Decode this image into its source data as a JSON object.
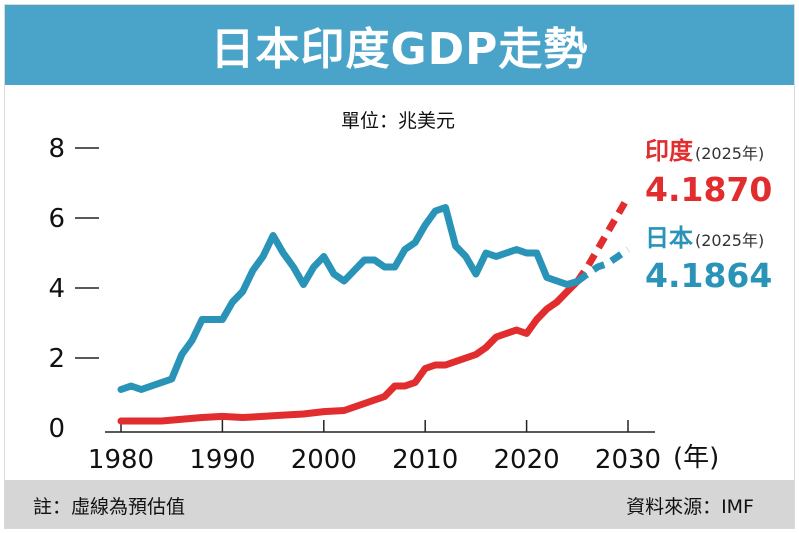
{
  "title": "日本印度GDP走勢",
  "unit": "單位：兆美元",
  "footer": {
    "note": "註：虛線為預估值",
    "source": "資料來源：IMF"
  },
  "annotations": {
    "india": {
      "name": "印度",
      "year": "(2025年)",
      "value": "4.1870"
    },
    "japan": {
      "name": "日本",
      "year": "(2025年)",
      "value": "4.1864"
    }
  },
  "chart_data": {
    "type": "line",
    "x_unit_label": "(年)",
    "xlim": [
      1980,
      2030
    ],
    "ylim": [
      0,
      8
    ],
    "x_ticks": [
      "1980",
      "1990",
      "2000",
      "2010",
      "2020",
      "2030"
    ],
    "y_ticks": [
      "0",
      "2",
      "4",
      "6",
      "8"
    ],
    "series": [
      {
        "name": "日本",
        "color": "#2a93b8",
        "values": [
          [
            1980,
            1.1
          ],
          [
            1981,
            1.2
          ],
          [
            1982,
            1.1
          ],
          [
            1983,
            1.2
          ],
          [
            1984,
            1.3
          ],
          [
            1985,
            1.4
          ],
          [
            1986,
            2.1
          ],
          [
            1987,
            2.5
          ],
          [
            1988,
            3.1
          ],
          [
            1989,
            3.1
          ],
          [
            1990,
            3.1
          ],
          [
            1991,
            3.6
          ],
          [
            1992,
            3.9
          ],
          [
            1993,
            4.5
          ],
          [
            1994,
            4.9
          ],
          [
            1995,
            5.5
          ],
          [
            1996,
            5.0
          ],
          [
            1997,
            4.6
          ],
          [
            1998,
            4.1
          ],
          [
            1999,
            4.6
          ],
          [
            2000,
            4.9
          ],
          [
            2001,
            4.4
          ],
          [
            2002,
            4.2
          ],
          [
            2003,
            4.5
          ],
          [
            2004,
            4.8
          ],
          [
            2005,
            4.8
          ],
          [
            2006,
            4.6
          ],
          [
            2007,
            4.6
          ],
          [
            2008,
            5.1
          ],
          [
            2009,
            5.3
          ],
          [
            2010,
            5.8
          ],
          [
            2011,
            6.2
          ],
          [
            2012,
            6.3
          ],
          [
            2013,
            5.2
          ],
          [
            2014,
            4.9
          ],
          [
            2015,
            4.4
          ],
          [
            2016,
            5.0
          ],
          [
            2017,
            4.9
          ],
          [
            2018,
            5.0
          ],
          [
            2019,
            5.1
          ],
          [
            2020,
            5.0
          ],
          [
            2021,
            5.0
          ],
          [
            2022,
            4.3
          ],
          [
            2023,
            4.2
          ],
          [
            2024,
            4.1
          ],
          [
            2025,
            4.1864
          ]
        ],
        "projection": [
          [
            2025,
            4.1864
          ],
          [
            2026,
            4.4
          ],
          [
            2027,
            4.6
          ],
          [
            2028,
            4.7
          ],
          [
            2029,
            4.9
          ],
          [
            2030,
            5.1
          ]
        ]
      },
      {
        "name": "印度",
        "color": "#e12d2d",
        "values": [
          [
            1980,
            0.2
          ],
          [
            1982,
            0.2
          ],
          [
            1984,
            0.2
          ],
          [
            1986,
            0.25
          ],
          [
            1988,
            0.3
          ],
          [
            1990,
            0.33
          ],
          [
            1992,
            0.3
          ],
          [
            1994,
            0.33
          ],
          [
            1996,
            0.37
          ],
          [
            1998,
            0.4
          ],
          [
            2000,
            0.47
          ],
          [
            2002,
            0.5
          ],
          [
            2004,
            0.7
          ],
          [
            2005,
            0.8
          ],
          [
            2006,
            0.9
          ],
          [
            2007,
            1.2
          ],
          [
            2008,
            1.2
          ],
          [
            2009,
            1.3
          ],
          [
            2010,
            1.7
          ],
          [
            2011,
            1.8
          ],
          [
            2012,
            1.8
          ],
          [
            2013,
            1.9
          ],
          [
            2014,
            2.0
          ],
          [
            2015,
            2.1
          ],
          [
            2016,
            2.3
          ],
          [
            2017,
            2.6
          ],
          [
            2018,
            2.7
          ],
          [
            2019,
            2.8
          ],
          [
            2020,
            2.7
          ],
          [
            2021,
            3.1
          ],
          [
            2022,
            3.4
          ],
          [
            2023,
            3.6
          ],
          [
            2024,
            3.9
          ],
          [
            2025,
            4.187
          ]
        ],
        "projection": [
          [
            2025,
            4.187
          ],
          [
            2026,
            4.6
          ],
          [
            2027,
            5.1
          ],
          [
            2028,
            5.6
          ],
          [
            2029,
            6.1
          ],
          [
            2030,
            6.6
          ]
        ]
      }
    ]
  }
}
